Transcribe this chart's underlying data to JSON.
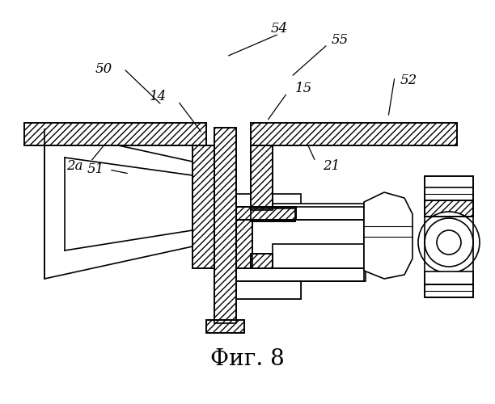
{
  "title": "Фиг. 8",
  "title_fontsize": 20,
  "bg_color": "#ffffff",
  "line_color": "#000000",
  "figsize": [
    6.12,
    5.0
  ],
  "dpi": 100
}
